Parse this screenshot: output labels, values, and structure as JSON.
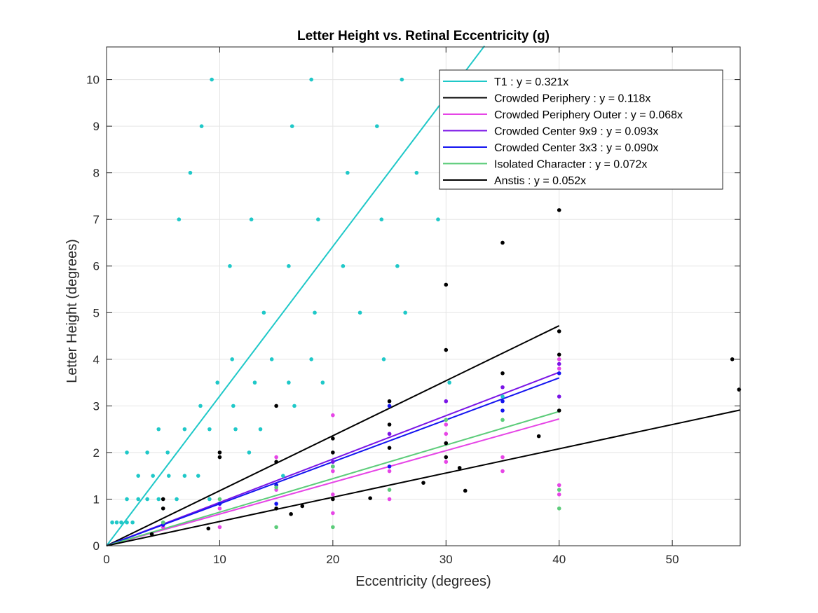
{
  "chart_data": {
    "type": "scatter",
    "title": "Letter Height vs. Retinal Eccentricity (g)",
    "xlabel": "Eccentricity (degrees)",
    "ylabel": "Letter Height (degrees)",
    "xlim": [
      0,
      56
    ],
    "ylim": [
      0,
      10.7
    ],
    "xticks": [
      0,
      10,
      20,
      30,
      40,
      50
    ],
    "yticks": [
      0,
      1,
      2,
      3,
      4,
      5,
      6,
      7,
      8,
      9,
      10
    ],
    "grid": true,
    "legend_position": "top-right",
    "fit_lines": [
      {
        "label": "T1 : y = 0.321x",
        "slope": 0.321,
        "x_range": [
          0,
          33.4
        ],
        "color": "#1fc8c8"
      },
      {
        "label": "Crowded Periphery : y = 0.118x",
        "slope": 0.118,
        "x_range": [
          0,
          40
        ],
        "color": "#000000"
      },
      {
        "label": "Crowded Periphery Outer : y = 0.068x",
        "slope": 0.068,
        "x_range": [
          0,
          40
        ],
        "color": "#e645e6"
      },
      {
        "label": "Crowded Center 9x9 : y = 0.093x",
        "slope": 0.093,
        "x_range": [
          0,
          40
        ],
        "color": "#7a14e6"
      },
      {
        "label": "Crowded Center 3x3 : y = 0.090x",
        "slope": 0.09,
        "x_range": [
          0,
          40
        ],
        "color": "#1414f0"
      },
      {
        "label": "Isolated Character : y = 0.072x",
        "slope": 0.072,
        "x_range": [
          0,
          40
        ],
        "color": "#5ccc7a"
      },
      {
        "label": "Anstis : y = 0.052x",
        "slope": 0.052,
        "x_range": [
          0,
          56
        ],
        "color": "#000000"
      }
    ],
    "series": [
      {
        "color": "#1fc8c8",
        "points": [
          [
            0.5,
            0.5
          ],
          [
            0.9,
            0.5
          ],
          [
            1.3,
            0.5
          ],
          [
            1.8,
            0.5
          ],
          [
            2.3,
            0.5
          ],
          [
            1.8,
            1
          ],
          [
            1.8,
            2
          ],
          [
            2.8,
            1
          ],
          [
            2.8,
            1.5
          ],
          [
            3.6,
            1
          ],
          [
            3.6,
            2
          ],
          [
            4.1,
            1.5
          ],
          [
            4.6,
            2.5
          ],
          [
            4.6,
            1
          ],
          [
            5.4,
            2
          ],
          [
            5.5,
            1.5
          ],
          [
            6.2,
            1
          ],
          [
            6.4,
            7
          ],
          [
            6.9,
            2.5
          ],
          [
            6.9,
            1.5
          ],
          [
            7.4,
            8
          ],
          [
            8.1,
            1.5
          ],
          [
            8.3,
            3
          ],
          [
            8.4,
            9
          ],
          [
            9.1,
            2.5
          ],
          [
            9.1,
            1
          ],
          [
            9.3,
            10
          ],
          [
            9.8,
            3.5
          ],
          [
            10.9,
            6
          ],
          [
            11.1,
            4
          ],
          [
            11.2,
            3
          ],
          [
            11.4,
            2.5
          ],
          [
            12.8,
            7
          ],
          [
            12.6,
            2
          ],
          [
            13.1,
            3.5
          ],
          [
            13.6,
            2.5
          ],
          [
            13.9,
            5
          ],
          [
            14.6,
            4
          ],
          [
            15.6,
            1.5
          ],
          [
            16.1,
            6
          ],
          [
            16.1,
            3.5
          ],
          [
            16.4,
            9
          ],
          [
            16.6,
            3
          ],
          [
            18.1,
            10
          ],
          [
            18.1,
            4
          ],
          [
            18.4,
            5
          ],
          [
            18.7,
            7
          ],
          [
            19.1,
            3.5
          ],
          [
            20.9,
            6
          ],
          [
            21.3,
            8
          ],
          [
            22.4,
            5
          ],
          [
            23.9,
            9
          ],
          [
            24.3,
            7
          ],
          [
            24.5,
            4
          ],
          [
            25.7,
            6
          ],
          [
            26.1,
            10
          ],
          [
            26.4,
            5
          ],
          [
            27.4,
            8
          ],
          [
            29.3,
            7
          ],
          [
            30.3,
            3.5
          ],
          [
            35,
            3.2
          ]
        ]
      },
      {
        "color": "#000000",
        "points": [
          [
            4,
            0.25
          ],
          [
            5,
            1
          ],
          [
            5,
            0.8
          ],
          [
            9,
            0.37
          ],
          [
            10,
            2
          ],
          [
            10,
            1.9
          ],
          [
            15,
            3
          ],
          [
            15,
            1.8
          ],
          [
            15,
            1.3
          ],
          [
            15,
            0.8
          ],
          [
            16.3,
            0.68
          ],
          [
            17.3,
            0.85
          ],
          [
            20,
            2.3
          ],
          [
            20,
            2
          ],
          [
            20,
            1
          ],
          [
            23.3,
            1.02
          ],
          [
            25,
            3.1
          ],
          [
            25,
            2.6
          ],
          [
            25,
            2.1
          ],
          [
            28,
            1.35
          ],
          [
            30,
            5.6
          ],
          [
            30,
            4.2
          ],
          [
            30,
            2.2
          ],
          [
            30,
            1.9
          ],
          [
            31.2,
            1.67
          ],
          [
            31.7,
            1.18
          ],
          [
            35,
            6.5
          ],
          [
            35,
            3.7
          ],
          [
            38.2,
            2.35
          ],
          [
            40,
            7.2
          ],
          [
            40,
            4.6
          ],
          [
            40,
            4.1
          ],
          [
            40,
            2.9
          ],
          [
            55.3,
            4
          ],
          [
            55.9,
            3.35
          ]
        ]
      },
      {
        "color": "#e645e6",
        "points": [
          [
            5,
            0.4
          ],
          [
            10,
            0.8
          ],
          [
            10,
            0.4
          ],
          [
            15,
            1.9
          ],
          [
            15,
            1.2
          ],
          [
            20,
            2.8
          ],
          [
            20,
            1.6
          ],
          [
            20,
            1.1
          ],
          [
            20,
            0.7
          ],
          [
            25,
            2.4
          ],
          [
            25,
            1.6
          ],
          [
            25,
            1
          ],
          [
            30,
            2.6
          ],
          [
            30,
            2.4
          ],
          [
            30,
            1.8
          ],
          [
            35,
            1.9
          ],
          [
            35,
            1.6
          ],
          [
            40,
            4
          ],
          [
            40,
            3.8
          ],
          [
            40,
            1.3
          ],
          [
            40,
            1.1
          ]
        ]
      },
      {
        "color": "#7a14e6",
        "points": [
          [
            5,
            0.45
          ],
          [
            10,
            0.9
          ],
          [
            20,
            1.8
          ],
          [
            25,
            2.4
          ],
          [
            30,
            3.1
          ],
          [
            35,
            3.4
          ],
          [
            40,
            3.9
          ],
          [
            40,
            3.2
          ]
        ]
      },
      {
        "color": "#1414f0",
        "points": [
          [
            5,
            0.45
          ],
          [
            10,
            0.9
          ],
          [
            15,
            0.9
          ],
          [
            15,
            1.3
          ],
          [
            20,
            1.7
          ],
          [
            25,
            3
          ],
          [
            25,
            1.7
          ],
          [
            35,
            2.9
          ],
          [
            35,
            3.1
          ],
          [
            40,
            3.7
          ]
        ]
      },
      {
        "color": "#5ccc7a",
        "points": [
          [
            5,
            0.5
          ],
          [
            10,
            1
          ],
          [
            15,
            0.4
          ],
          [
            15,
            1.25
          ],
          [
            20,
            1.7
          ],
          [
            20,
            0.4
          ],
          [
            25,
            1.2
          ],
          [
            30,
            2.7
          ],
          [
            35,
            2.7
          ],
          [
            40,
            1.2
          ],
          [
            40,
            0.8
          ]
        ]
      }
    ]
  }
}
